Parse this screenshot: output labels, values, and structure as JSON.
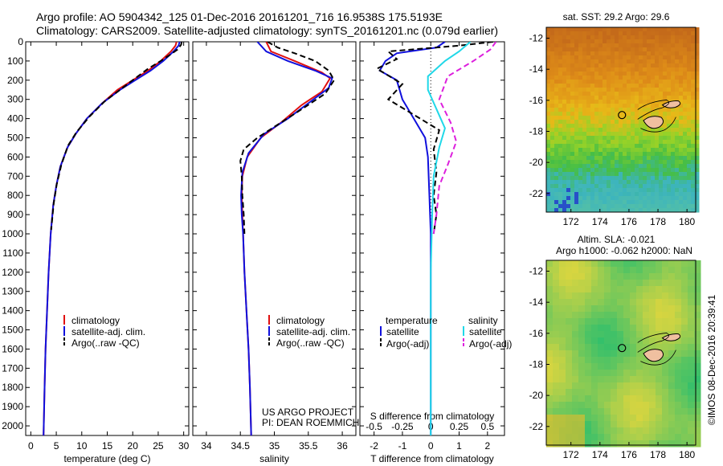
{
  "title_line1": "Argo profile: AO 5904342_125 01-Dec-2016 20161201_716 16.9538S 175.5193E",
  "title_line2": "Climatology: CARS2009. Satellite-adjusted climatology: synTS_20161201.nc (0.079d earlier)",
  "credit": "©IMOS 08-Dec-2016 20:39:41",
  "colors": {
    "climatology": "#e01010",
    "satellite": "#1010dd",
    "argo": "#000000",
    "sal_satellite": "#20d8e8",
    "sal_argo": "#dd20dd"
  },
  "chart_data": [
    {
      "type": "line",
      "title": "",
      "xlabel": "temperature (deg C)",
      "ylabel": "",
      "xlim": [
        -1,
        31
      ],
      "ylim": [
        2050,
        0
      ],
      "xticks": [
        0,
        5,
        10,
        15,
        20,
        25,
        30
      ],
      "yticks": [
        0,
        100,
        200,
        300,
        400,
        500,
        600,
        700,
        800,
        900,
        1000,
        1100,
        1200,
        1300,
        1400,
        1500,
        1600,
        1700,
        1800,
        1900,
        2000
      ],
      "legend": [
        "climatology",
        "satellite-adj. clim.",
        "Argo(..raw -QC)"
      ],
      "legend_position": "lower-left",
      "series": [
        {
          "name": "climatology",
          "style": "solid",
          "color_key": "climatology",
          "points": [
            [
              28.6,
              0
            ],
            [
              28.4,
              20
            ],
            [
              27.5,
              50
            ],
            [
              25.5,
              100
            ],
            [
              23,
              150
            ],
            [
              20,
              200
            ],
            [
              17,
              250
            ],
            [
              14,
              320
            ],
            [
              11,
              400
            ],
            [
              8.8,
              480
            ],
            [
              7.2,
              550
            ],
            [
              5.8,
              650
            ],
            [
              5.0,
              750
            ],
            [
              4.4,
              850
            ],
            [
              3.9,
              1000
            ],
            [
              3.5,
              1200
            ],
            [
              3.2,
              1400
            ],
            [
              2.9,
              1600
            ],
            [
              2.7,
              1800
            ],
            [
              2.5,
              2050
            ]
          ]
        },
        {
          "name": "satellite-adj. clim.",
          "style": "solid",
          "color_key": "satellite",
          "points": [
            [
              29.2,
              0
            ],
            [
              29.0,
              20
            ],
            [
              28.0,
              50
            ],
            [
              26,
              100
            ],
            [
              23.5,
              150
            ],
            [
              20.5,
              200
            ],
            [
              17.5,
              250
            ],
            [
              14,
              320
            ],
            [
              11,
              400
            ],
            [
              8.8,
              480
            ],
            [
              7.2,
              550
            ],
            [
              5.8,
              650
            ],
            [
              5.0,
              750
            ],
            [
              4.4,
              850
            ],
            [
              3.9,
              1000
            ],
            [
              3.5,
              1200
            ],
            [
              3.2,
              1400
            ],
            [
              2.9,
              1600
            ],
            [
              2.7,
              1800
            ],
            [
              2.5,
              2050
            ]
          ]
        },
        {
          "name": "Argo(..raw -QC)",
          "style": "dashed",
          "color_key": "argo",
          "points": [
            [
              29.6,
              0
            ],
            [
              29.5,
              15
            ],
            [
              28.8,
              40
            ],
            [
              27.2,
              70
            ],
            [
              25.5,
              100
            ],
            [
              23,
              140
            ],
            [
              20.5,
              190
            ],
            [
              17.5,
              250
            ],
            [
              14.5,
              310
            ],
            [
              11.5,
              390
            ],
            [
              9,
              470
            ],
            [
              7.3,
              540
            ],
            [
              6,
              640
            ],
            [
              5.1,
              740
            ],
            [
              4.5,
              840
            ],
            [
              4.0,
              980
            ]
          ]
        }
      ]
    },
    {
      "type": "line",
      "title": "",
      "xlabel": "salinity",
      "ylabel": "",
      "xlim": [
        33.8,
        36.2
      ],
      "ylim": [
        2050,
        0
      ],
      "xticks": [
        34,
        34.5,
        35,
        35.5,
        36
      ],
      "legend": [
        "climatology",
        "satellite-adj. clim.",
        "Argo(..raw -QC)"
      ],
      "legend_position": "lower-right",
      "annotations": [
        "US ARGO PROJECT",
        "PI: DEAN ROEMMICH"
      ],
      "series": [
        {
          "name": "climatology",
          "style": "solid",
          "color_key": "climatology",
          "points": [
            [
              34.88,
              0
            ],
            [
              34.95,
              50
            ],
            [
              35.3,
              100
            ],
            [
              35.7,
              160
            ],
            [
              35.82,
              190
            ],
            [
              35.7,
              260
            ],
            [
              35.4,
              330
            ],
            [
              35.1,
              420
            ],
            [
              34.8,
              500
            ],
            [
              34.6,
              600
            ],
            [
              34.53,
              700
            ],
            [
              34.52,
              800
            ],
            [
              34.53,
              900
            ],
            [
              34.54,
              1000
            ],
            [
              34.56,
              1200
            ],
            [
              34.59,
              1400
            ],
            [
              34.62,
              1600
            ],
            [
              34.64,
              1800
            ],
            [
              34.66,
              2050
            ]
          ]
        },
        {
          "name": "satellite-adj. clim.",
          "style": "solid",
          "color_key": "satellite",
          "points": [
            [
              34.75,
              0
            ],
            [
              34.88,
              50
            ],
            [
              35.2,
              100
            ],
            [
              35.6,
              150
            ],
            [
              35.85,
              190
            ],
            [
              35.8,
              240
            ],
            [
              35.5,
              320
            ],
            [
              35.2,
              400
            ],
            [
              34.85,
              480
            ],
            [
              34.62,
              580
            ],
            [
              34.53,
              680
            ],
            [
              34.51,
              800
            ],
            [
              34.52,
              900
            ],
            [
              34.54,
              1000
            ],
            [
              34.56,
              1200
            ],
            [
              34.59,
              1400
            ],
            [
              34.62,
              1600
            ],
            [
              34.64,
              1800
            ],
            [
              34.66,
              2050
            ]
          ]
        },
        {
          "name": "Argo(..raw -QC)",
          "style": "dashed",
          "color_key": "argo",
          "points": [
            [
              34.9,
              0
            ],
            [
              35.05,
              30
            ],
            [
              35.3,
              60
            ],
            [
              35.6,
              100
            ],
            [
              35.8,
              150
            ],
            [
              35.88,
              200
            ],
            [
              35.75,
              270
            ],
            [
              35.45,
              340
            ],
            [
              35.1,
              420
            ],
            [
              34.75,
              500
            ],
            [
              34.55,
              560
            ],
            [
              34.5,
              620
            ],
            [
              34.52,
              700
            ],
            [
              34.53,
              800
            ],
            [
              34.55,
              900
            ],
            [
              34.56,
              1000
            ]
          ]
        }
      ]
    },
    {
      "type": "line",
      "title": "",
      "xlabel": "T difference from climatology",
      "xlabel_secondary": "S difference from climatology",
      "xlim": [
        -2.5,
        2.6
      ],
      "ylim": [
        2050,
        0
      ],
      "xticks": [
        -2,
        -1,
        0,
        1,
        2
      ],
      "xticks_secondary": [
        "-0.5",
        "-0.25",
        "0",
        "0.25",
        "0.5"
      ],
      "legend_headers": [
        "temperature",
        "salinity"
      ],
      "legend": [
        "satellite",
        "Argo(-adj)",
        "satellite",
        "Argo(-adj)"
      ],
      "legend_position": "lower-center",
      "series": [
        {
          "name": "satellite",
          "quantity": "temperature",
          "style": "solid",
          "color_key": "satellite",
          "points": [
            [
              0.5,
              0
            ],
            [
              0.2,
              30
            ],
            [
              -1.2,
              60
            ],
            [
              -1.6,
              100
            ],
            [
              -1.8,
              150
            ],
            [
              -1.2,
              200
            ],
            [
              -1.0,
              300
            ],
            [
              -0.6,
              400
            ],
            [
              -0.2,
              500
            ],
            [
              -0.1,
              600
            ],
            [
              -0.05,
              800
            ],
            [
              0,
              1000
            ],
            [
              0,
              1500
            ],
            [
              0,
              2050
            ]
          ]
        },
        {
          "name": "Argo(-adj)",
          "quantity": "temperature",
          "style": "dashed",
          "color_key": "argo",
          "points": [
            [
              2.2,
              0
            ],
            [
              1.0,
              20
            ],
            [
              -1.5,
              50
            ],
            [
              -1.2,
              90
            ],
            [
              -1.9,
              140
            ],
            [
              -1.0,
              220
            ],
            [
              -1.5,
              300
            ],
            [
              -0.6,
              380
            ],
            [
              0.3,
              460
            ],
            [
              0.1,
              560
            ],
            [
              0.2,
              680
            ],
            [
              0.1,
              800
            ],
            [
              0.2,
              900
            ],
            [
              0.1,
              1000
            ]
          ]
        },
        {
          "name": "satellite",
          "quantity": "salinity",
          "style": "solid",
          "color_key": "sal_satellite",
          "points": [
            [
              1.4,
              0
            ],
            [
              1.0,
              50
            ],
            [
              0.5,
              100
            ],
            [
              -0.1,
              180
            ],
            [
              -0.1,
              250
            ],
            [
              0.2,
              350
            ],
            [
              0.5,
              450
            ],
            [
              0.3,
              550
            ],
            [
              0.1,
              700
            ],
            [
              0.05,
              900
            ],
            [
              0,
              1200
            ],
            [
              0,
              2050
            ]
          ]
        },
        {
          "name": "Argo(-adj)",
          "quantity": "salinity",
          "style": "dashed",
          "color_key": "sal_argo",
          "points": [
            [
              2.3,
              0
            ],
            [
              2.1,
              40
            ],
            [
              1.5,
              100
            ],
            [
              0.6,
              180
            ],
            [
              0.3,
              300
            ],
            [
              0.7,
              420
            ],
            [
              0.9,
              520
            ],
            [
              0.6,
              640
            ],
            [
              0.3,
              750
            ],
            [
              0.2,
              900
            ],
            [
              0.1,
              1000
            ]
          ]
        }
      ]
    },
    {
      "type": "heatmap",
      "title": "sat. SST: 29.2 Argo: 29.6",
      "xlim": [
        170.3,
        180.6
      ],
      "ylim": [
        -23.2,
        -11.3
      ],
      "xticks": [
        172,
        174,
        176,
        178,
        180
      ],
      "yticks": [
        -12,
        -14,
        -16,
        -18,
        -20,
        -22
      ],
      "marker": {
        "lon": 175.52,
        "lat": -16.95
      }
    },
    {
      "type": "heatmap",
      "title": "Altim. SLA: -0.021",
      "subtitle": "Argo h1000: -0.062 h2000: NaN",
      "xlim": [
        170.3,
        180.6
      ],
      "ylim": [
        -23.2,
        -11.3
      ],
      "xticks": [
        172,
        174,
        176,
        178,
        180
      ],
      "yticks": [
        -12,
        -14,
        -16,
        -18,
        -20,
        -22
      ],
      "marker": {
        "lon": 175.52,
        "lat": -16.95
      }
    }
  ]
}
